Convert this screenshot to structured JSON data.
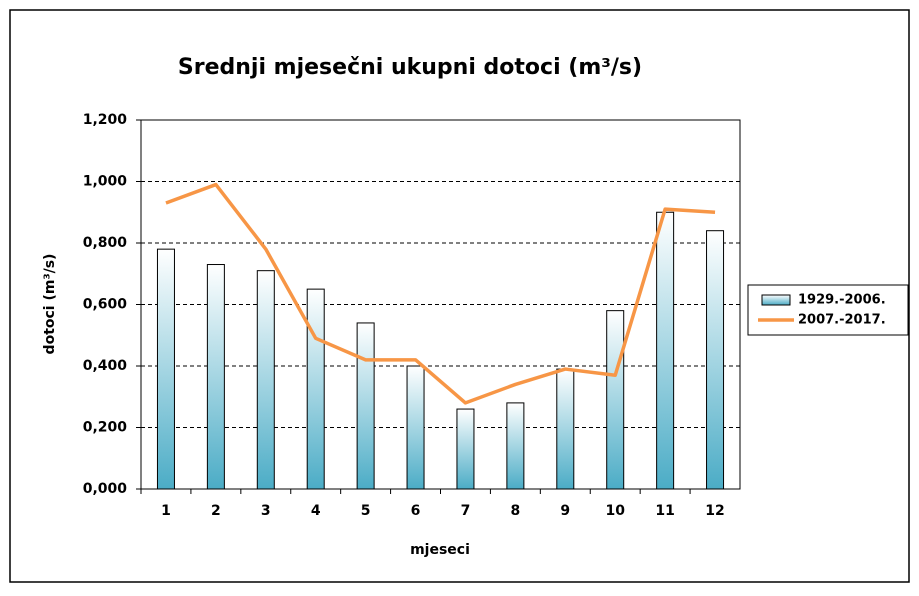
{
  "chart_data": {
    "type": "bar",
    "title": "Srednji mjesečni ukupni dotoci (m³/s)",
    "x_label": "mjeseci",
    "y_label": "dotoci  (m³/s)",
    "categories": [
      "1",
      "2",
      "3",
      "4",
      "5",
      "6",
      "7",
      "8",
      "9",
      "10",
      "11",
      "12"
    ],
    "series": [
      {
        "name": "1929.-2006.",
        "type": "bar",
        "color": "#4bacc6",
        "values": [
          0.78,
          0.73,
          0.71,
          0.65,
          0.54,
          0.4,
          0.26,
          0.28,
          0.39,
          0.58,
          0.9,
          0.84
        ]
      },
      {
        "name": "2007.-2017.",
        "type": "line",
        "color": "#f79646",
        "values": [
          0.93,
          0.99,
          0.78,
          0.49,
          0.42,
          0.42,
          0.28,
          0.34,
          0.39,
          0.37,
          0.91,
          0.9
        ]
      }
    ],
    "ylim": [
      0,
      1.2
    ],
    "yticks": [
      {
        "value": 0,
        "label": "0,000"
      },
      {
        "value": 0.2,
        "label": "0,200"
      },
      {
        "value": 0.4,
        "label": "0,400"
      },
      {
        "value": 0.6,
        "label": "0,600"
      },
      {
        "value": 0.8,
        "label": "0,800"
      },
      {
        "value": 1.0,
        "label": "1,000"
      },
      {
        "value": 1.2,
        "label": "1,200"
      }
    ],
    "grid": true,
    "legend": "right"
  }
}
